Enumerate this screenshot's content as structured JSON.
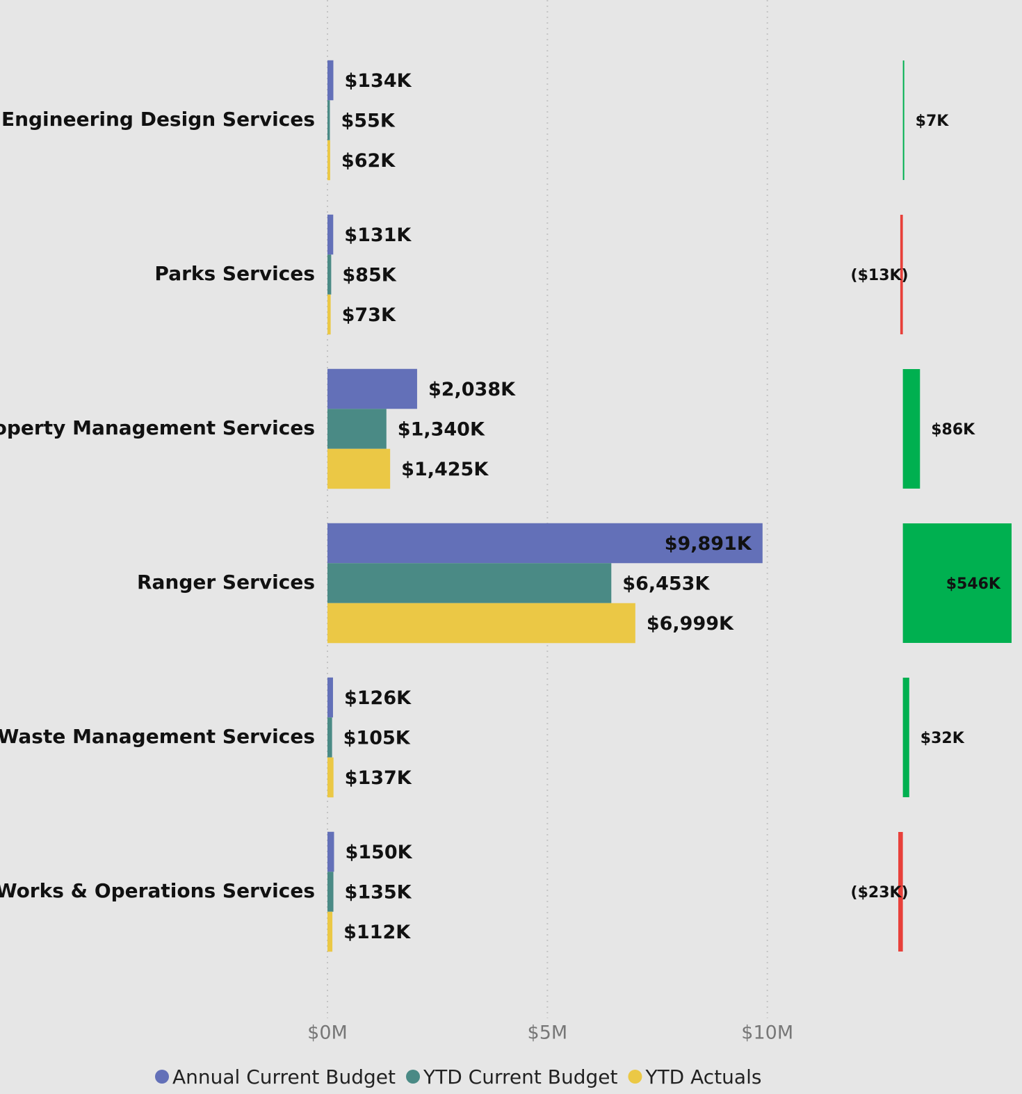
{
  "chart_data": [
    {
      "type": "bar",
      "orientation": "horizontal",
      "categories": [
        "Engineering Design Services",
        "Parks Services",
        "Property Management Services",
        "Ranger Services",
        "Waste Management Services",
        "Works & Operations Services"
      ],
      "series": [
        {
          "name": "Annual Current Budget",
          "color": "#6370b8",
          "values": [
            134000,
            131000,
            2038000,
            9891000,
            126000,
            150000
          ],
          "value_labels": [
            "$134K",
            "$131K",
            "$2,038K",
            "$9,891K",
            "$126K",
            "$150K"
          ]
        },
        {
          "name": "YTD Current Budget",
          "color": "#4a8a85",
          "values": [
            55000,
            85000,
            1340000,
            6453000,
            105000,
            135000
          ],
          "value_labels": [
            "$55K",
            "$85K",
            "$1,340K",
            "$6,453K",
            "$105K",
            "$135K"
          ]
        },
        {
          "name": "YTD Actuals",
          "color": "#ebc845",
          "values": [
            62000,
            73000,
            1425000,
            6999000,
            137000,
            112000
          ],
          "value_labels": [
            "$62K",
            "$73K",
            "$1,425K",
            "$6,999K",
            "$137K",
            "$112K"
          ]
        }
      ],
      "xlim": [
        0,
        10700000
      ],
      "xticks": [
        {
          "value": 0,
          "label": "$0M"
        },
        {
          "value": 5000000,
          "label": "$5M"
        },
        {
          "value": 10000000,
          "label": "$10M"
        }
      ],
      "grid": true,
      "legend": "bottom"
    },
    {
      "type": "variance",
      "values": [
        7000,
        -13000,
        86000,
        546000,
        32000,
        -23000
      ],
      "value_labels": [
        "$7K",
        "($13K)",
        "$86K",
        "$546K",
        "$32K",
        "($23K)"
      ],
      "positive_color": "#00b050",
      "negative_color": "#e8403a",
      "xlim": [
        -100000,
        560000
      ]
    }
  ]
}
